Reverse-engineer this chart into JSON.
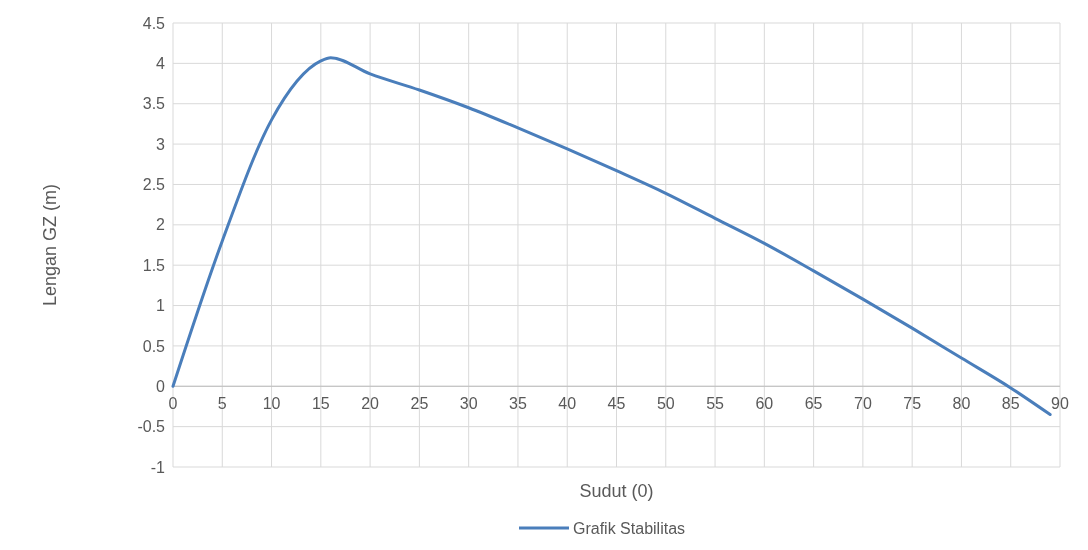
{
  "chart_data": {
    "type": "line",
    "xlabel": "Sudut (0)",
    "ylabel": "Lengan GZ (m)",
    "series": [
      {
        "name": "Grafik Stabilitas",
        "color": "#4a7ebb",
        "x": [
          0,
          5,
          10,
          15,
          16,
          20,
          25,
          30,
          35,
          40,
          45,
          50,
          55,
          60,
          65,
          70,
          75,
          80,
          85,
          89
        ],
        "values": [
          0,
          1.8,
          3.3,
          4.03,
          4.07,
          3.87,
          3.67,
          3.45,
          3.2,
          2.94,
          2.67,
          2.39,
          2.08,
          1.77,
          1.43,
          1.08,
          0.72,
          0.35,
          -0.02,
          -0.35
        ]
      }
    ],
    "xlim": [
      0,
      90
    ],
    "xticks": [
      0,
      5,
      10,
      15,
      20,
      25,
      30,
      35,
      40,
      45,
      50,
      55,
      60,
      65,
      70,
      75,
      80,
      85,
      90
    ],
    "ylim": [
      -1,
      4.5
    ],
    "yticks": [
      -1,
      -0.5,
      0,
      0.5,
      1,
      1.5,
      2,
      2.5,
      3,
      3.5,
      4,
      4.5
    ],
    "grid": true,
    "legend": "bottom",
    "marker": "none",
    "line_style": "solid"
  }
}
